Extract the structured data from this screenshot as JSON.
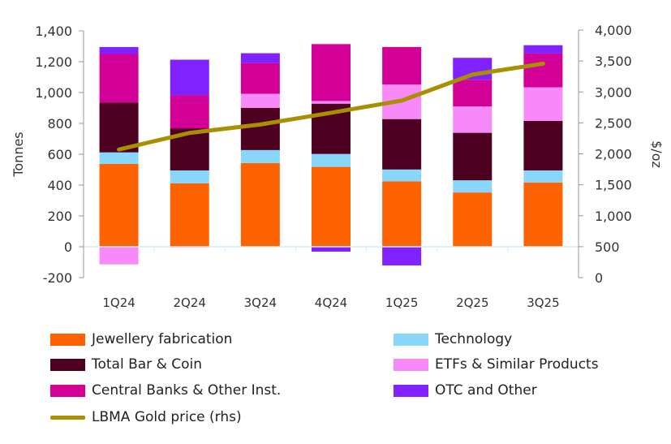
{
  "chart_data": {
    "type": "bar",
    "stacked": true,
    "categories": [
      "1Q24",
      "2Q24",
      "3Q24",
      "4Q24",
      "1Q25",
      "2Q25",
      "3Q25"
    ],
    "ylabel": "Tonnes",
    "ylim": [
      -200,
      1400
    ],
    "yticks": [
      "-200",
      "0",
      "200",
      "400",
      "600",
      "800",
      "1,000",
      "1,200",
      "1,400"
    ],
    "y2label": "$/oz",
    "y2lim": [
      0,
      4000
    ],
    "y2ticks": [
      "0",
      "500",
      "1,000",
      "1,500",
      "2,000",
      "2,500",
      "3,000",
      "3,500",
      "4,000"
    ],
    "grid": false,
    "legend_position": "bottom",
    "series": [
      {
        "name": "Jewellery fabrication",
        "color": "#FF6200",
        "values": [
          537,
          411,
          543,
          518,
          424,
          352,
          417
        ]
      },
      {
        "name": "Technology",
        "color": "#89D6FB",
        "values": [
          75,
          84,
          84,
          84,
          77,
          79,
          78
        ]
      },
      {
        "name": "Total Bar & Coin",
        "color": "#4D0020",
        "values": [
          322,
          273,
          273,
          326,
          327,
          308,
          321
        ]
      },
      {
        "name": "ETFs & Similar Products",
        "color": "#F78AF8",
        "values": [
          -114,
          -6,
          92,
          17,
          224,
          171,
          218
        ]
      },
      {
        "name": "Central Banks & Other Inst.",
        "color": "#D20096",
        "values": [
          316,
          214,
          198,
          369,
          243,
          173,
          219
        ]
      },
      {
        "name": "OTC and Other",
        "color": "#7F22FF",
        "values": [
          45,
          231,
          65,
          -32,
          -121,
          142,
          54
        ]
      }
    ],
    "line_series": {
      "name": "LBMA Gold price (rhs)",
      "color": "#A89000",
      "axis": "right",
      "values": [
        2070,
        2338,
        2474,
        2663,
        2860,
        3280,
        3457
      ]
    }
  }
}
